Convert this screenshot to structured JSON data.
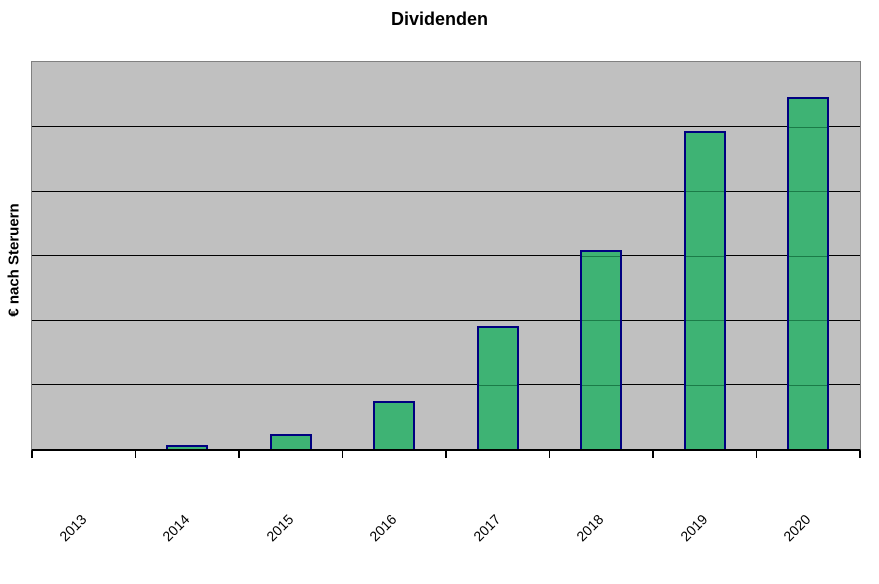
{
  "chart_data": {
    "type": "bar",
    "title": "Dividenden",
    "categories": [
      "2013",
      "2014",
      "2015",
      "2016",
      "2017",
      "2018",
      "2019",
      "2020"
    ],
    "values": [
      0,
      0.07,
      0.23,
      0.74,
      1.9,
      3.08,
      4.93,
      5.46
    ],
    "values_unit": "gridline-units (y-axis has no numeric tick labels; 1 unit = one gridline interval, axis spans 6 intervals)",
    "xlabel": "",
    "ylabel": "€ nach Steruern",
    "ylim": [
      0,
      6
    ],
    "grid": "horizontal",
    "legend": "none",
    "x_tick_rotation_deg": -45,
    "colors": {
      "bar_fill": "#3eb374",
      "bar_border": "#000080",
      "plot_background": "#c0c0c0",
      "plot_border": "#808080",
      "gridline": "#000000",
      "gridline_over_bar": "#1b7b48",
      "axis_line": "#000000",
      "text": "#000000",
      "page_background": "#ffffff"
    }
  }
}
